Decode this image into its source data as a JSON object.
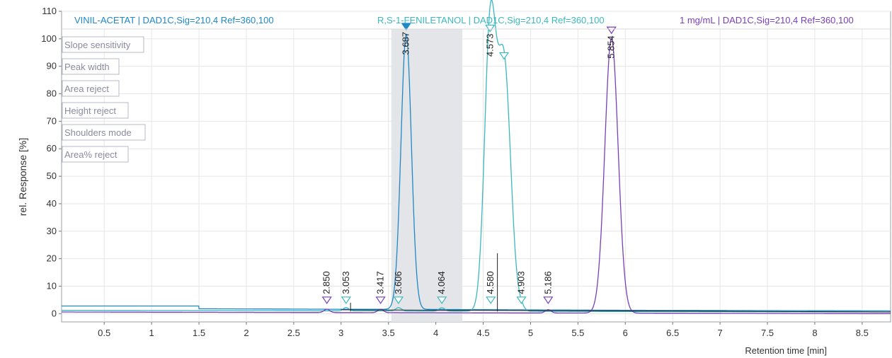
{
  "chart_data": {
    "type": "line",
    "ylabel": "rel. Response [%]",
    "xlabel": "Retention time [min]",
    "xlim": [
      0.05,
      8.8
    ],
    "ylim": [
      -3,
      110
    ],
    "x_ticks": [
      0.5,
      1,
      1.5,
      2,
      2.5,
      3,
      3.5,
      4,
      4.5,
      5,
      5.5,
      6,
      6.5,
      7,
      7.5,
      8,
      8.5
    ],
    "x_tick_labels": [
      "0.5",
      "1",
      "1.5",
      "2",
      "2.5",
      "3",
      "3.5",
      "4",
      "4.5",
      "5",
      "5.5",
      "6",
      "6.5",
      "7",
      "7.5",
      "8",
      "8.5"
    ],
    "y_ticks": [
      0,
      10,
      20,
      30,
      40,
      50,
      60,
      70,
      80,
      90,
      100,
      110
    ],
    "y_tick_labels": [
      "0",
      "10",
      "20",
      "30",
      "40",
      "50",
      "60",
      "70",
      "80",
      "90",
      "100",
      "110"
    ],
    "grid": true,
    "highlight_region": [
      3.53,
      4.28
    ],
    "legend_position": "top",
    "param_labels": [
      "Slope sensitivity",
      "Peak width",
      "Area reject",
      "Height reject",
      "Shoulders mode",
      "Area% reject"
    ],
    "series": [
      {
        "name": "VINIL-ACETAT | DAD1C,Sig=210,4 Ref=360,100",
        "color": "#1e88c8",
        "baseline": [
          [
            0.05,
            2.8
          ],
          [
            1.5,
            2.8
          ],
          [
            1.5,
            1.8
          ],
          [
            3.0,
            1.6
          ],
          [
            3.55,
            1.6
          ],
          [
            5.5,
            1.3
          ],
          [
            8.8,
            1.0
          ]
        ],
        "peaks": [
          {
            "rt": 3.687,
            "height": 100,
            "width": 0.055,
            "label": "3.687",
            "marker": "filled"
          }
        ]
      },
      {
        "name": "R,S-1-FENILETANOL | DAD1C,Sig=210,4 Ref=360,100",
        "color": "#3ab8bf",
        "baseline": [
          [
            0.05,
            1.2
          ],
          [
            2.0,
            1.1
          ],
          [
            3.5,
            1.0
          ],
          [
            6.0,
            0.8
          ],
          [
            8.8,
            0.6
          ]
        ],
        "peaks": [
          {
            "rt": 4.573,
            "height": 100,
            "width": 0.06,
            "label": "4.573",
            "marker": "open"
          },
          {
            "rt": 4.72,
            "height": 90,
            "width": 0.07,
            "label": "",
            "marker": "open"
          }
        ],
        "small_peaks": [
          {
            "rt": 3.053,
            "label": "3.053"
          },
          {
            "rt": 3.606,
            "label": "3.606"
          },
          {
            "rt": 4.064,
            "label": "4.064"
          },
          {
            "rt": 4.58,
            "label": "4.580"
          },
          {
            "rt": 4.903,
            "label": "4.903"
          }
        ]
      },
      {
        "name": "1 mg/mL | DAD1C,Sig=210,4 Ref=360,100",
        "color": "#7a3fb8",
        "baseline": [
          [
            0.05,
            0.6
          ],
          [
            3.0,
            0.4
          ],
          [
            6.0,
            0.2
          ],
          [
            8.8,
            0.0
          ]
        ],
        "peaks": [
          {
            "rt": 5.854,
            "height": 100,
            "width": 0.07,
            "label": "5.854",
            "marker": "open"
          }
        ],
        "small_peaks": [
          {
            "rt": 2.85,
            "label": "2.850"
          },
          {
            "rt": 3.417,
            "label": "3.417"
          },
          {
            "rt": 5.186,
            "label": "5.186"
          }
        ]
      }
    ]
  }
}
